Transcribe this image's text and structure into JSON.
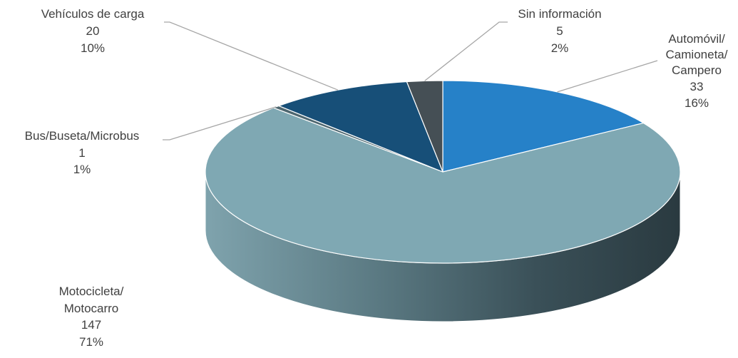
{
  "chart_data": {
    "type": "pie",
    "style": "3d",
    "categories": [
      "Automóvil/ Camioneta/ Campero",
      "Motocicleta/ Motocarro",
      "Bus/Buseta/Microbus",
      "Vehículos de carga",
      "Sin información"
    ],
    "values": [
      33,
      147,
      1,
      20,
      5
    ],
    "percent_labels": [
      "16%",
      "71%",
      "1%",
      "10%",
      "2%"
    ],
    "value_labels": [
      "33",
      "147",
      "1",
      "20",
      "5"
    ],
    "colors": [
      "#2681c8",
      "#7fa8b3",
      "#4e6770",
      "#174f78",
      "#454f55"
    ],
    "legend": "none"
  },
  "labels": [
    {
      "lines": [
        "Automóvil/",
        "Camioneta/",
        "Campero"
      ],
      "value": "33",
      "percent": "16%"
    },
    {
      "lines": [
        "Motocicleta/",
        "Motocarro"
      ],
      "value": "147",
      "percent": "71%"
    },
    {
      "lines": [
        "Bus/Buseta/Microbus"
      ],
      "value": "1",
      "percent": "1%"
    },
    {
      "lines": [
        "Vehículos de carga"
      ],
      "value": "20",
      "percent": "10%"
    },
    {
      "lines": [
        "Sin información"
      ],
      "value": "5",
      "percent": "2%"
    }
  ]
}
